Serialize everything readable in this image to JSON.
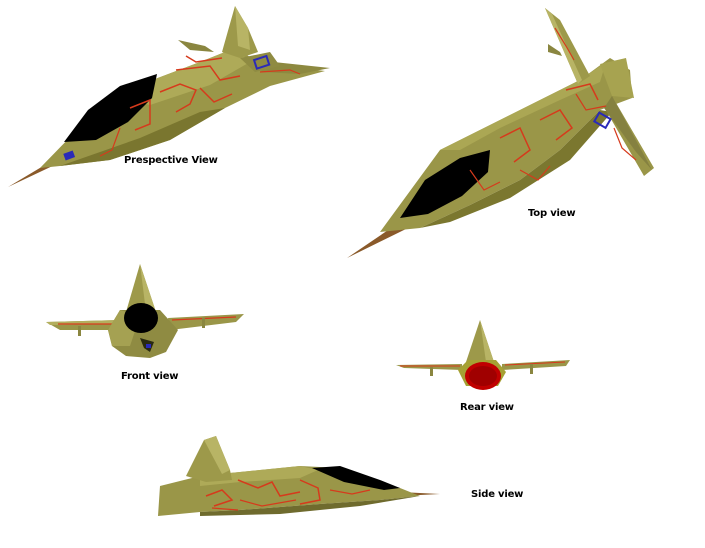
{
  "labels": {
    "perspective": "Prespective View",
    "top": "Top view",
    "front": "Front view",
    "rear": "Rear view",
    "side": "Side view"
  },
  "colors": {
    "hull": "#9a9648",
    "hull_dark": "#6f6b2e",
    "hull_light": "#c2bf6c",
    "panel_lines": "#d63a1c",
    "canopy": "#000000",
    "insignia": "#2a2ab8",
    "engine": "#c00000",
    "background": "#ffffff"
  }
}
